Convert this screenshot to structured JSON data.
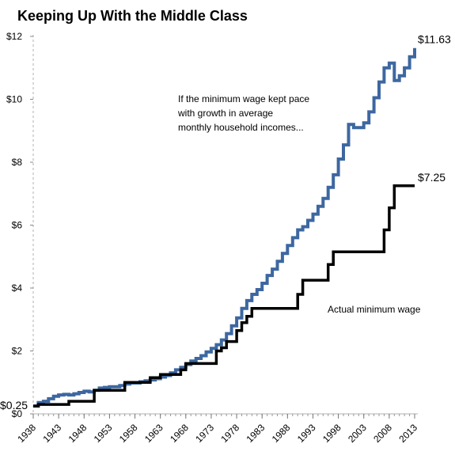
{
  "chart_data": {
    "type": "line",
    "title": "Keeping Up With the Middle Class",
    "xlabel": "",
    "ylabel": "",
    "xlim": [
      1938,
      2013
    ],
    "ylim": [
      0,
      12
    ],
    "grid": false,
    "y_ticks": [
      {
        "value": 0,
        "label": "$0"
      },
      {
        "value": 2,
        "label": "$2"
      },
      {
        "value": 4,
        "label": "$4"
      },
      {
        "value": 6,
        "label": "$6"
      },
      {
        "value": 8,
        "label": "$8"
      },
      {
        "value": 10,
        "label": "$10"
      },
      {
        "value": 12,
        "label": "$12"
      }
    ],
    "x_ticks": [
      1938,
      1943,
      1948,
      1953,
      1958,
      1963,
      1968,
      1973,
      1978,
      1983,
      1988,
      1993,
      1998,
      2003,
      2008,
      2013
    ],
    "start_label": {
      "value": 0.25,
      "text": "$0.25"
    },
    "annotations": {
      "pace_lines": [
        "If the minimum wage kept pace",
        "with growth in average",
        "monthly household incomes..."
      ],
      "actual": "Actual minimum wage"
    },
    "series": [
      {
        "name": "If the minimum wage kept pace with growth in average monthly household incomes...",
        "color": "#3d67a0",
        "end_label": "$11.63",
        "points": [
          [
            1938,
            0.25
          ],
          [
            1939,
            0.36
          ],
          [
            1940,
            0.4
          ],
          [
            1941,
            0.48
          ],
          [
            1942,
            0.56
          ],
          [
            1943,
            0.6
          ],
          [
            1944,
            0.62
          ],
          [
            1945,
            0.6
          ],
          [
            1946,
            0.64
          ],
          [
            1947,
            0.68
          ],
          [
            1948,
            0.72
          ],
          [
            1949,
            0.7
          ],
          [
            1950,
            0.75
          ],
          [
            1951,
            0.82
          ],
          [
            1952,
            0.84
          ],
          [
            1953,
            0.86
          ],
          [
            1954,
            0.86
          ],
          [
            1955,
            0.9
          ],
          [
            1956,
            0.95
          ],
          [
            1957,
            0.98
          ],
          [
            1958,
            0.98
          ],
          [
            1959,
            1.02
          ],
          [
            1960,
            1.05
          ],
          [
            1961,
            1.08
          ],
          [
            1962,
            1.12
          ],
          [
            1963,
            1.17
          ],
          [
            1964,
            1.22
          ],
          [
            1965,
            1.3
          ],
          [
            1966,
            1.4
          ],
          [
            1967,
            1.48
          ],
          [
            1968,
            1.57
          ],
          [
            1969,
            1.68
          ],
          [
            1970,
            1.76
          ],
          [
            1971,
            1.85
          ],
          [
            1972,
            1.97
          ],
          [
            1973,
            2.08
          ],
          [
            1974,
            2.2
          ],
          [
            1975,
            2.35
          ],
          [
            1976,
            2.55
          ],
          [
            1977,
            2.8
          ],
          [
            1978,
            3.05
          ],
          [
            1979,
            3.35
          ],
          [
            1980,
            3.6
          ],
          [
            1981,
            3.8
          ],
          [
            1982,
            3.95
          ],
          [
            1983,
            4.15
          ],
          [
            1984,
            4.4
          ],
          [
            1985,
            4.6
          ],
          [
            1986,
            4.85
          ],
          [
            1987,
            5.1
          ],
          [
            1988,
            5.35
          ],
          [
            1989,
            5.6
          ],
          [
            1990,
            5.85
          ],
          [
            1991,
            5.95
          ],
          [
            1992,
            6.15
          ],
          [
            1993,
            6.35
          ],
          [
            1994,
            6.6
          ],
          [
            1995,
            6.85
          ],
          [
            1996,
            7.2
          ],
          [
            1997,
            7.6
          ],
          [
            1998,
            8.1
          ],
          [
            1999,
            8.55
          ],
          [
            2000,
            9.2
          ],
          [
            2001,
            9.1
          ],
          [
            2002,
            9.1
          ],
          [
            2003,
            9.25
          ],
          [
            2004,
            9.6
          ],
          [
            2005,
            10.05
          ],
          [
            2006,
            10.55
          ],
          [
            2007,
            11.0
          ],
          [
            2008,
            11.15
          ],
          [
            2009,
            10.6
          ],
          [
            2010,
            10.75
          ],
          [
            2011,
            11.0
          ],
          [
            2012,
            11.35
          ],
          [
            2013,
            11.63
          ]
        ]
      },
      {
        "name": "Actual minimum wage",
        "color": "#000000",
        "end_label": "$7.25",
        "points": [
          [
            1938,
            0.25
          ],
          [
            1939,
            0.3
          ],
          [
            1945,
            0.4
          ],
          [
            1950,
            0.75
          ],
          [
            1956,
            1.0
          ],
          [
            1961,
            1.15
          ],
          [
            1963,
            1.25
          ],
          [
            1967,
            1.4
          ],
          [
            1968,
            1.6
          ],
          [
            1974,
            2.0
          ],
          [
            1975,
            2.1
          ],
          [
            1976,
            2.3
          ],
          [
            1978,
            2.65
          ],
          [
            1979,
            2.9
          ],
          [
            1980,
            3.1
          ],
          [
            1981,
            3.35
          ],
          [
            1990,
            3.8
          ],
          [
            1991,
            4.25
          ],
          [
            1996,
            4.75
          ],
          [
            1997,
            5.15
          ],
          [
            2007,
            5.85
          ],
          [
            2008,
            6.55
          ],
          [
            2009,
            7.25
          ],
          [
            2013,
            7.25
          ]
        ]
      }
    ]
  }
}
